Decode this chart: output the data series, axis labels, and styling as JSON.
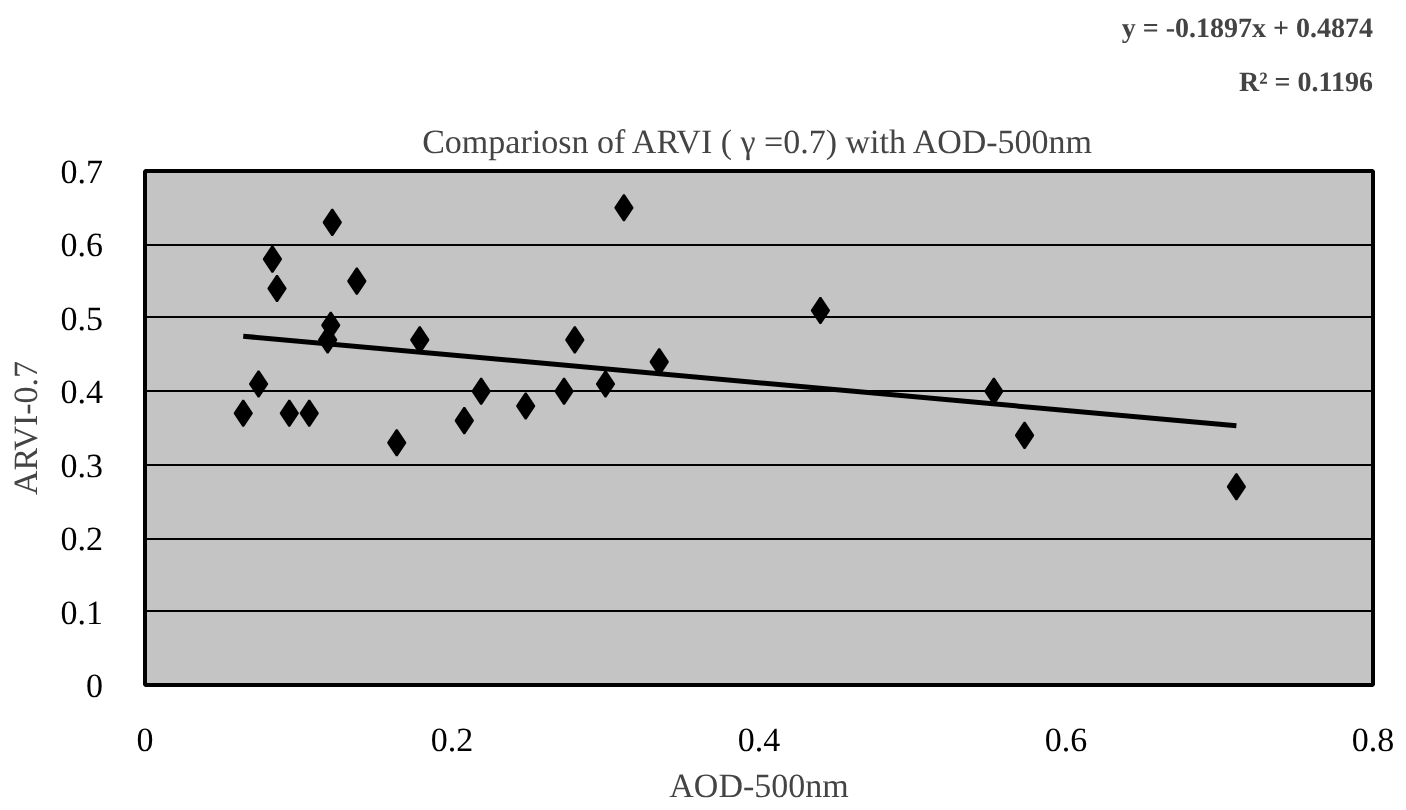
{
  "chart_data": {
    "type": "scatter",
    "title": "Compariosn of ARVI ( γ =0.7) with AOD-500nm",
    "xlabel": "AOD-500nm",
    "ylabel": "ARVI-0.7",
    "annotations": [
      "y = -0.1897x + 0.4874",
      "R² = 0.1196"
    ],
    "xlim": [
      0,
      0.8
    ],
    "ylim": [
      0,
      0.7
    ],
    "xticks": [
      0,
      0.2,
      0.4,
      0.6,
      0.8
    ],
    "yticks": [
      0,
      0.1,
      0.2,
      0.3,
      0.4,
      0.5,
      0.6,
      0.7
    ],
    "grid": "y",
    "marker": "diamond",
    "series": [
      {
        "color": "#000000",
        "x": [
          0.064,
          0.074,
          0.083,
          0.086,
          0.094,
          0.107,
          0.122,
          0.121,
          0.119,
          0.138,
          0.164,
          0.179,
          0.208,
          0.219,
          0.248,
          0.273,
          0.28,
          0.3,
          0.312,
          0.335,
          0.44,
          0.553,
          0.573,
          0.711
        ],
        "values": [
          0.37,
          0.41,
          0.58,
          0.54,
          0.37,
          0.37,
          0.63,
          0.49,
          0.47,
          0.55,
          0.33,
          0.47,
          0.36,
          0.4,
          0.38,
          0.4,
          0.47,
          0.41,
          0.65,
          0.44,
          0.51,
          0.4,
          0.34,
          0.27
        ]
      },
      {
        "type": "line",
        "marker": "none",
        "color": "#000000",
        "x": [
          0.064,
          0.711
        ],
        "values": [
          0.475,
          0.353
        ]
      }
    ]
  }
}
